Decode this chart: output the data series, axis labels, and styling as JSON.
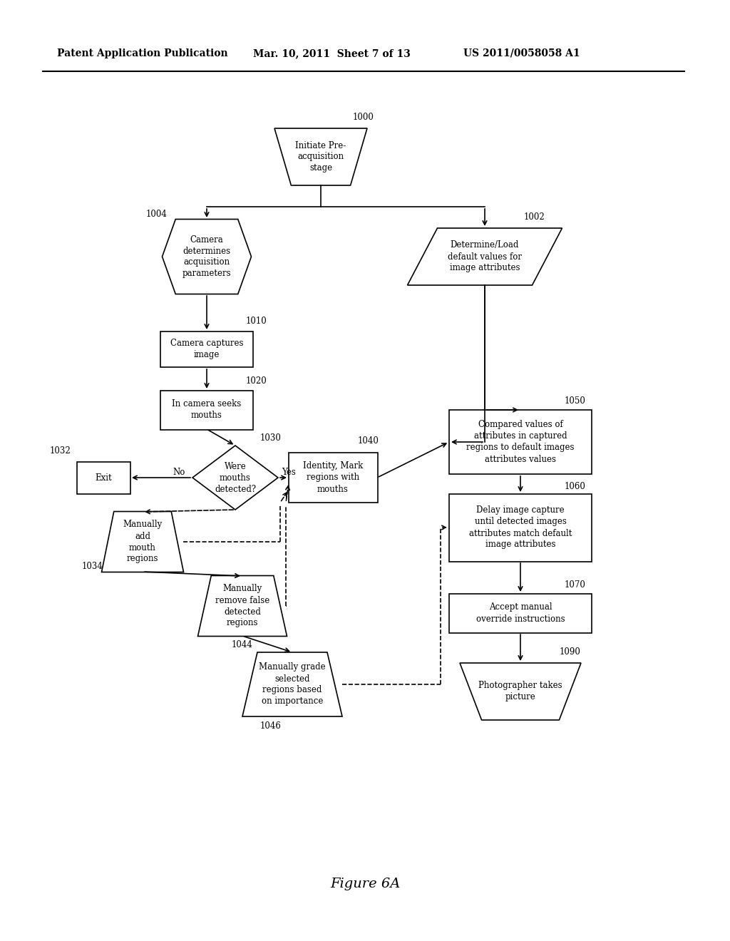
{
  "title_left": "Patent Application Publication",
  "title_mid": "Mar. 10, 2011  Sheet 7 of 13",
  "title_right": "US 2011/0058058 A1",
  "caption": "Figure 6A",
  "background": "#ffffff"
}
